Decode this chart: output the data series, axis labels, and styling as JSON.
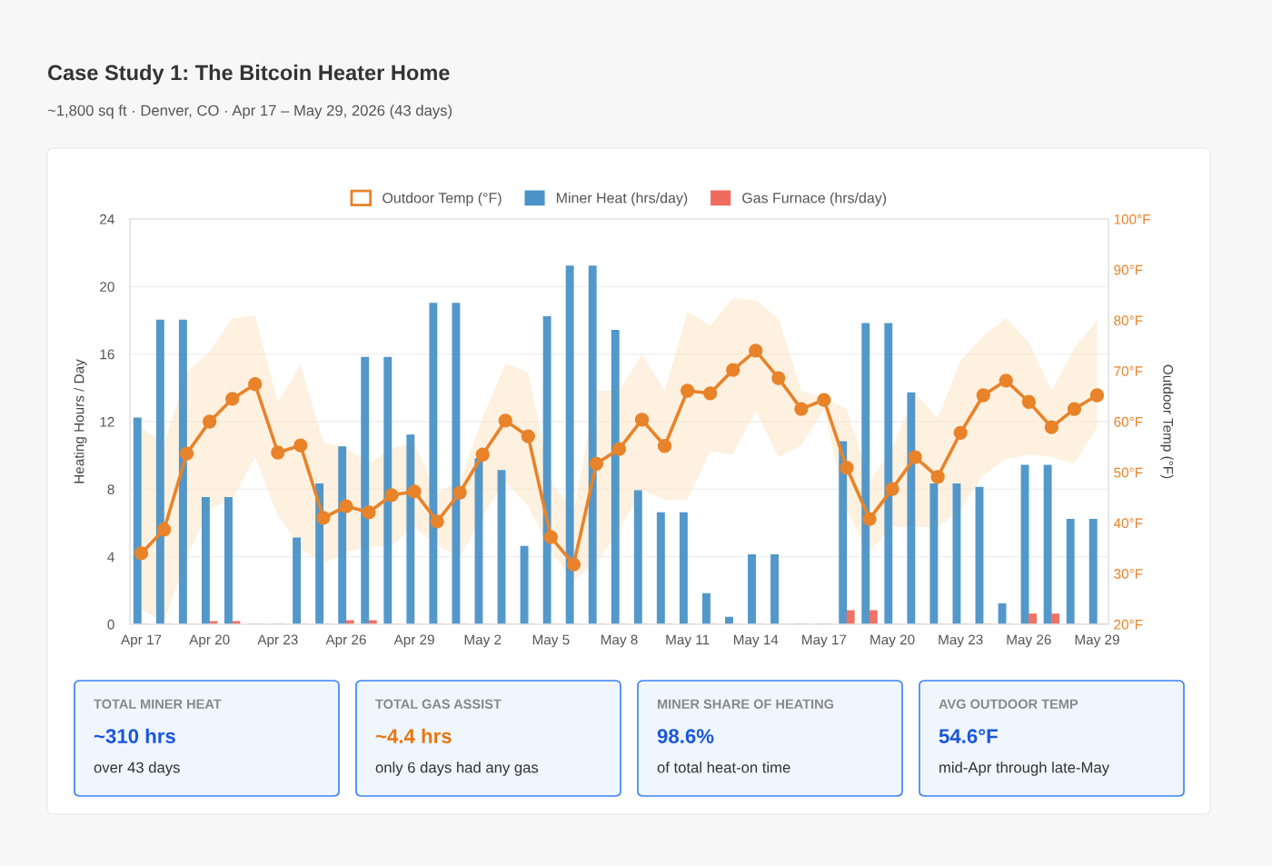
{
  "chart_data": {
    "type": "bar",
    "title": "Case Study 1: The Bitcoin Heater Home",
    "subtitle": "~1,800 sq ft · Denver, CO · Apr 17 – May 29, 2026 (43 days)",
    "ylabel": "Heating Hours / Day",
    "y2label": "Outdoor Temp (°F)",
    "categories": [
      "Apr 17",
      null,
      null,
      "Apr 20",
      null,
      null,
      "Apr 23",
      null,
      null,
      "Apr 26",
      null,
      null,
      "Apr 29",
      null,
      null,
      "May 2",
      null,
      null,
      "May 5",
      null,
      null,
      "May 8",
      null,
      null,
      "May 11",
      null,
      null,
      "May 14",
      null,
      null,
      "May 17",
      null,
      null,
      "May 20",
      null,
      null,
      "May 23",
      null,
      null,
      "May 26",
      null,
      null,
      "May 29"
    ],
    "series": [
      {
        "name": "Outdoor Temp (°F)",
        "type": "line",
        "axis": "y2",
        "color": "#e8832a",
        "marker": "circle",
        "values": [
          34.0,
          38.7,
          53.7,
          60.0,
          64.5,
          67.4,
          53.9,
          55.3,
          41.0,
          43.3,
          42.1,
          45.5,
          46.2,
          40.3,
          46.0,
          53.5,
          60.2,
          57.1,
          37.2,
          31.8,
          51.7,
          54.6,
          60.4,
          55.2,
          66.1,
          65.6,
          70.2,
          74.0,
          68.6,
          62.5,
          64.3,
          50.9,
          40.8,
          46.7,
          53.0,
          49.1,
          57.8,
          65.2,
          68.1,
          63.9,
          58.9,
          62.5,
          65.2
        ],
        "lower": [
          23,
          20.5,
          33.3,
          42.8,
          44.6,
          53,
          41.5,
          35,
          32,
          34.3,
          35.2,
          35.6,
          39.2,
          35.6,
          33.3,
          41.5,
          48.2,
          43.3,
          34.3,
          28.8,
          32,
          38.7,
          46.4,
          44.6,
          44.6,
          54.1,
          53.5,
          62.2,
          53,
          55.3,
          62.5,
          42.2,
          34.3,
          39.2,
          39.2,
          39.2,
          42.8,
          49.4,
          52.6,
          53.5,
          53,
          51.7,
          58.9
        ],
        "upper": [
          58.9,
          55.7,
          69.7,
          73.8,
          80.4,
          81,
          63.8,
          71.1,
          55.9,
          54.8,
          51.7,
          54.8,
          55.7,
          45.8,
          48.2,
          60.7,
          71.5,
          69.7,
          48.2,
          42.2,
          66.1,
          66.1,
          73.3,
          66.1,
          81.7,
          79,
          84.4,
          84,
          80.4,
          66.1,
          64.7,
          62.5,
          48.2,
          54.8,
          65.6,
          60.7,
          72,
          76.9,
          80.4,
          75.6,
          66.1,
          74.5,
          80.1
        ]
      },
      {
        "name": "Miner Heat (hrs/day)",
        "color": "#4a93c8",
        "values": [
          12.2,
          18,
          18,
          7.5,
          7.5,
          0,
          0,
          5.1,
          8.3,
          10.5,
          15.8,
          15.8,
          11.2,
          19,
          19,
          9.8,
          9.1,
          4.6,
          18.2,
          21.2,
          21.2,
          17.4,
          7.9,
          6.6,
          6.6,
          1.8,
          0.4,
          4.1,
          4.1,
          0,
          0,
          10.8,
          17.8,
          17.8,
          13.7,
          8.3,
          8.3,
          8.1,
          1.2,
          9.4,
          9.4,
          6.2,
          6.2
        ]
      },
      {
        "name": "Gas Furnace (hrs/day)",
        "color": "#ee6b5e",
        "values": [
          0,
          0,
          0,
          0.15,
          0.15,
          0,
          0,
          0,
          0,
          0.2,
          0.2,
          0,
          0,
          0,
          0,
          0,
          0,
          0,
          0,
          0,
          0,
          0,
          0,
          0,
          0,
          0,
          0,
          0,
          0,
          0,
          0,
          0.8,
          0.8,
          0,
          0,
          0,
          0,
          0,
          0,
          0.6,
          0.6,
          0,
          0
        ]
      }
    ],
    "ylim": [
      0,
      24
    ],
    "yticks": [
      0,
      4,
      8,
      12,
      16,
      20,
      24
    ],
    "y2lim": [
      20,
      100
    ],
    "y2ticks": [
      {
        "value": 20,
        "label": "20°F"
      },
      {
        "value": 30,
        "label": "30°F"
      },
      {
        "value": 40,
        "label": "40°F"
      },
      {
        "value": 50,
        "label": "50°F"
      },
      {
        "value": 60,
        "label": "60°F"
      },
      {
        "value": 70,
        "label": "70°F"
      },
      {
        "value": 80,
        "label": "80°F"
      },
      {
        "value": 90,
        "label": "90°F"
      },
      {
        "value": 100,
        "label": "100°F"
      }
    ],
    "grid": "y",
    "legend": "top",
    "annotations": [
      "TOTAL MINER HEAT",
      "~310 hrs",
      "over 43 days",
      "TOTAL GAS ASSIST",
      "~4.4 hrs",
      "only 6 days had any gas",
      "MINER SHARE OF HEATING",
      "98.6%",
      "of total heat-on time",
      "AVG OUTDOOR TEMP",
      "54.6°F",
      "mid-Apr through late-May"
    ]
  }
}
